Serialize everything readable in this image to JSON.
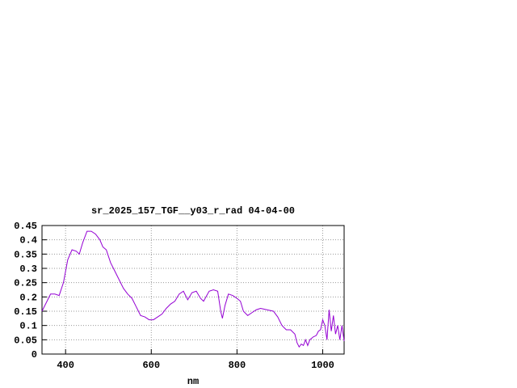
{
  "chart_data": {
    "type": "line",
    "title": "sr_2025_157_TGF__y03_r_rad 04-04-00",
    "x_label": "nm",
    "x": [
      345,
      355,
      365,
      375,
      385,
      395,
      405,
      415,
      425,
      432,
      440,
      450,
      460,
      470,
      480,
      487,
      495,
      505,
      515,
      525,
      535,
      545,
      555,
      565,
      575,
      585,
      595,
      605,
      615,
      625,
      635,
      645,
      655,
      665,
      675,
      685,
      695,
      705,
      715,
      722,
      735,
      745,
      755,
      762,
      766,
      772,
      780,
      790,
      800,
      808,
      815,
      825,
      835,
      845,
      855,
      870,
      885,
      895,
      905,
      915,
      925,
      935,
      940,
      945,
      950,
      955,
      960,
      965,
      970,
      978,
      985,
      990,
      995,
      1000,
      1005,
      1010,
      1015,
      1020,
      1025,
      1030,
      1035,
      1040,
      1045,
      1050
    ],
    "series": [
      {
        "color": "#9400d3",
        "values": [
          0.15,
          0.18,
          0.21,
          0.21,
          0.205,
          0.25,
          0.33,
          0.365,
          0.36,
          0.35,
          0.39,
          0.43,
          0.43,
          0.42,
          0.4,
          0.375,
          0.365,
          0.32,
          0.29,
          0.26,
          0.23,
          0.21,
          0.195,
          0.165,
          0.135,
          0.13,
          0.12,
          0.12,
          0.13,
          0.14,
          0.16,
          0.175,
          0.185,
          0.21,
          0.22,
          0.19,
          0.215,
          0.22,
          0.195,
          0.185,
          0.22,
          0.225,
          0.22,
          0.15,
          0.125,
          0.17,
          0.21,
          0.205,
          0.195,
          0.185,
          0.15,
          0.135,
          0.145,
          0.155,
          0.16,
          0.155,
          0.15,
          0.13,
          0.1,
          0.085,
          0.085,
          0.07,
          0.04,
          0.025,
          0.035,
          0.03,
          0.05,
          0.03,
          0.05,
          0.06,
          0.065,
          0.08,
          0.085,
          0.12,
          0.1,
          0.05,
          0.155,
          0.08,
          0.135,
          0.07,
          0.1,
          0.05,
          0.1,
          0.045
        ]
      }
    ],
    "xlim": [
      345,
      1050
    ],
    "xticks": [
      400,
      600,
      800,
      1000
    ],
    "ylim": [
      0,
      0.45
    ],
    "yticks": [
      0,
      0.05,
      0.1,
      0.15,
      0.2,
      0.25,
      0.3,
      0.35,
      0.4,
      0.45
    ],
    "grid": true
  }
}
